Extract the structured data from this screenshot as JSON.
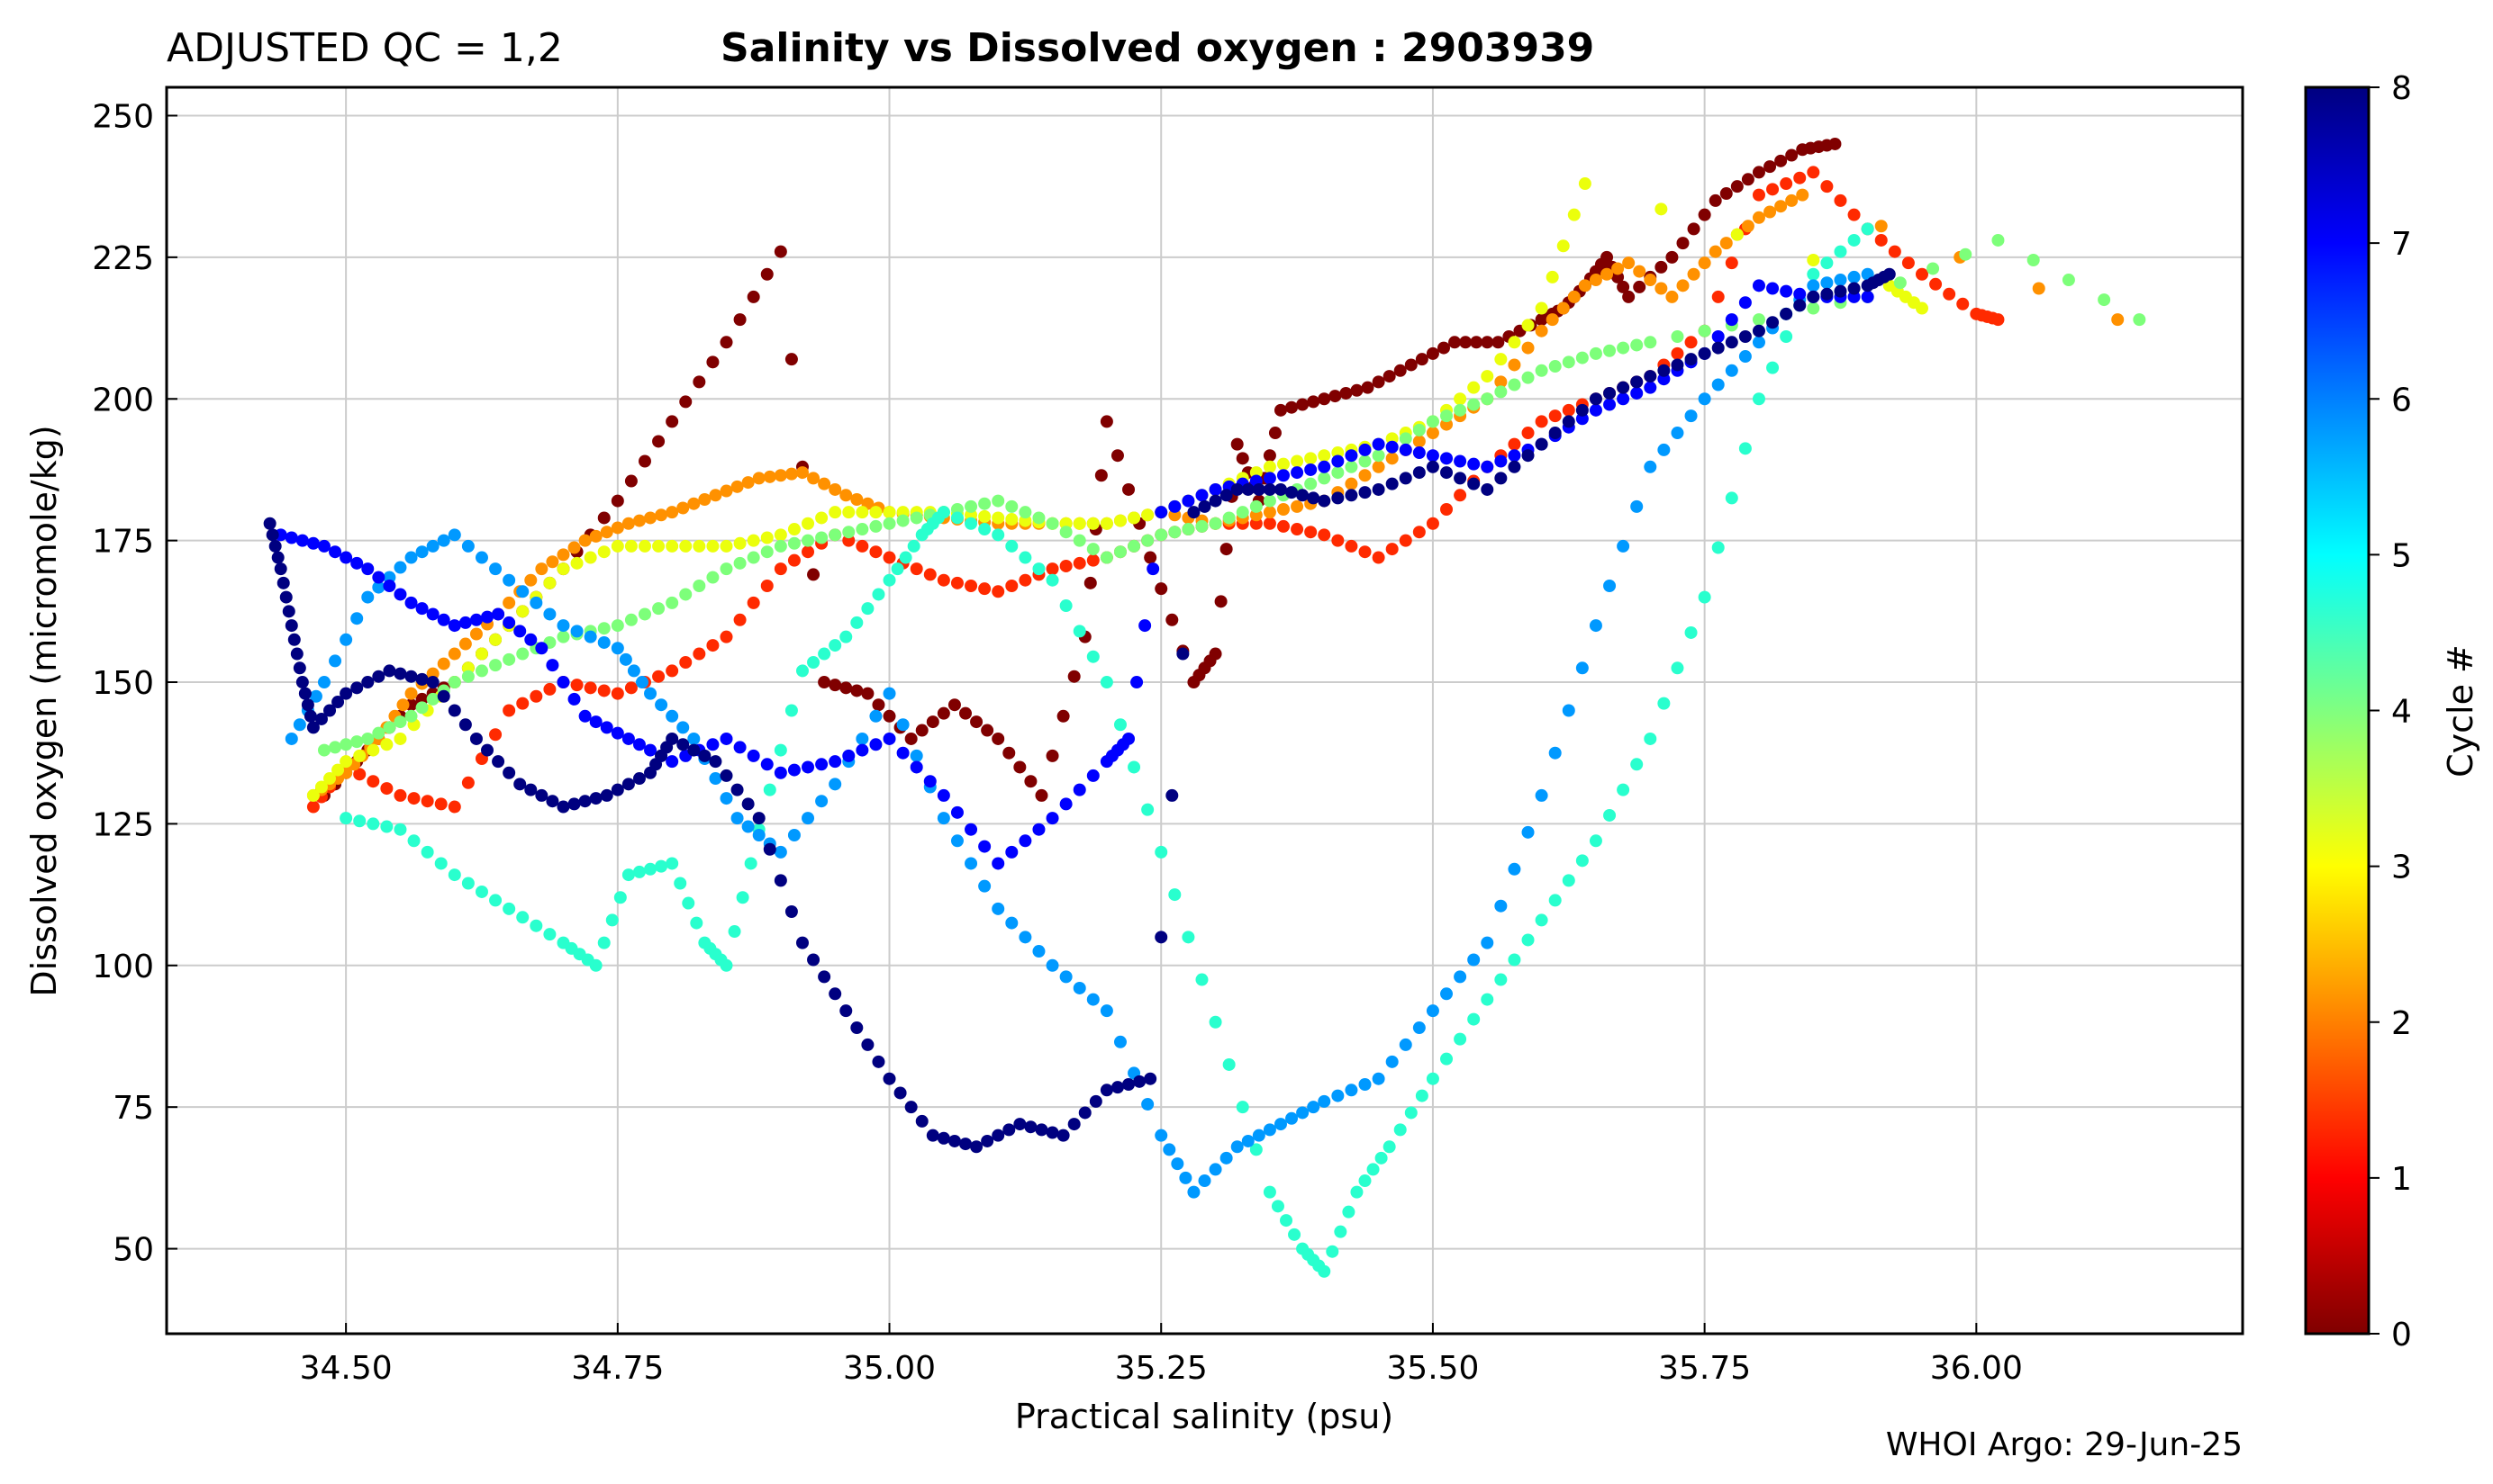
{
  "chart_data": {
    "type": "scatter",
    "title_left": "ADJUSTED QC = 1,2",
    "title": "Salinity vs Dissolved oxygen : 2903939",
    "xlabel": "Practical salinity  (psu)",
    "ylabel": "Dissolved oxygen  (micromole/kg)",
    "credit": "WHOI Argo: 29-Jun-25",
    "xlim": [
      34.335,
      36.245
    ],
    "ylim": [
      35,
      255
    ],
    "xticks": [
      34.5,
      34.75,
      35.0,
      35.25,
      35.5,
      35.75,
      36.0
    ],
    "xtick_labels": [
      "34.50",
      "34.75",
      "35.00",
      "35.25",
      "35.50",
      "35.75",
      "36.00"
    ],
    "yticks": [
      50,
      75,
      100,
      125,
      150,
      175,
      200,
      225,
      250
    ],
    "ytick_labels": [
      "50",
      "75",
      "100",
      "125",
      "150",
      "175",
      "200",
      "225",
      "250"
    ],
    "grid": true,
    "colorbar": {
      "label": "Cycle #",
      "min": 0,
      "max": 8,
      "ticks": [
        0,
        1,
        2,
        3,
        4,
        5,
        6,
        7,
        8
      ],
      "tick_labels": [
        "0",
        "1",
        "2",
        "3",
        "4",
        "5",
        "6",
        "7",
        "8"
      ],
      "colormap": "jet"
    },
    "series": [
      {
        "name": "Cycle 0",
        "cycle": 0,
        "color": "#800000",
        "x": [
          34.48,
          34.52,
          34.56,
          34.6,
          34.65,
          34.7,
          34.75,
          34.8,
          34.85,
          34.9,
          34.94,
          34.98,
          35.02,
          35.06,
          35.1,
          35.14,
          35.18,
          35.2,
          35.24,
          35.28,
          35.3,
          35.32,
          35.34,
          35.36,
          35.4,
          35.44,
          35.48,
          35.52,
          35.56,
          35.6,
          35.62,
          35.64,
          35.66,
          35.68,
          35.72,
          35.76,
          35.8,
          35.84,
          35.87
        ],
        "y": [
          130,
          138,
          146,
          150,
          160,
          170,
          182,
          196,
          210,
          226,
          150,
          148,
          140,
          146,
          140,
          130,
          158,
          196,
          172,
          150,
          155,
          192,
          182,
          198,
          200,
          202,
          206,
          210,
          210,
          214,
          216,
          220,
          225,
          218,
          225,
          235,
          240,
          244,
          245
        ]
      },
      {
        "name": "Cycle 1",
        "cycle": 1,
        "color": "#ff2a00",
        "x": [
          34.47,
          34.5,
          34.55,
          34.6,
          34.65,
          34.7,
          34.75,
          34.8,
          34.85,
          34.9,
          34.95,
          35.0,
          35.05,
          35.1,
          35.15,
          35.2,
          35.25,
          35.3,
          35.35,
          35.4,
          35.45,
          35.5,
          35.55,
          35.6,
          35.65,
          35.7,
          35.75,
          35.8,
          35.85,
          35.9,
          35.95,
          36.0,
          36.02
        ],
        "y": [
          128,
          135,
          130,
          128,
          145,
          150,
          148,
          152,
          158,
          170,
          176,
          172,
          168,
          166,
          170,
          172,
          176,
          178,
          178,
          176,
          172,
          178,
          188,
          196,
          200,
          204,
          212,
          236,
          240,
          230,
          222,
          215,
          214
        ]
      },
      {
        "name": "Cycle 2",
        "cycle": 2,
        "color": "#ff9100",
        "x": [
          34.47,
          34.5,
          34.53,
          34.56,
          34.6,
          34.64,
          34.68,
          34.72,
          34.76,
          34.8,
          34.84,
          34.88,
          34.92,
          34.96,
          35.0,
          35.05,
          35.1,
          35.15,
          35.2,
          35.25,
          35.3,
          35.35,
          35.4,
          35.45,
          35.5,
          35.55,
          35.6,
          35.64,
          35.68,
          35.72,
          35.76,
          35.8,
          35.84,
          36.13
        ],
        "y": [
          130,
          134,
          140,
          148,
          155,
          162,
          170,
          175,
          178,
          180,
          183,
          186,
          187,
          183,
          180,
          179,
          178,
          178,
          178,
          180,
          178,
          180,
          182,
          188,
          194,
          200,
          212,
          220,
          224,
          218,
          226,
          232,
          236,
          214
        ]
      },
      {
        "name": "Cycle 3",
        "cycle": 3,
        "color": "#ebff0c",
        "x": [
          34.47,
          34.5,
          34.55,
          34.6,
          34.65,
          34.7,
          34.75,
          34.8,
          34.85,
          34.9,
          34.95,
          35.0,
          35.05,
          35.1,
          35.15,
          35.2,
          35.25,
          35.3,
          35.35,
          35.4,
          35.45,
          35.5,
          35.55,
          35.6,
          35.64,
          35.92,
          35.95
        ],
        "y": [
          130,
          136,
          140,
          150,
          160,
          170,
          174,
          174,
          174,
          176,
          180,
          180,
          180,
          179,
          178,
          178,
          180,
          184,
          188,
          190,
          192,
          196,
          204,
          216,
          238,
          220,
          216
        ]
      },
      {
        "name": "Cycle 4",
        "cycle": 4,
        "color": "#7dff7a",
        "x": [
          34.48,
          34.52,
          34.56,
          34.6,
          34.65,
          34.7,
          34.75,
          34.8,
          34.85,
          34.9,
          34.95,
          35.0,
          35.05,
          35.1,
          35.15,
          35.2,
          35.25,
          35.3,
          35.35,
          35.4,
          35.45,
          35.5,
          35.55,
          35.6,
          35.65,
          35.7,
          35.8,
          35.9,
          36.02,
          36.15
        ],
        "y": [
          138,
          140,
          144,
          150,
          154,
          158,
          160,
          164,
          170,
          174,
          176,
          178,
          180,
          182,
          178,
          172,
          176,
          178,
          182,
          186,
          190,
          196,
          200,
          205,
          208,
          210,
          214,
          218,
          228,
          214
        ]
      },
      {
        "name": "Cycle 5",
        "cycle": 5,
        "color": "#29ffce",
        "x": [
          34.5,
          34.55,
          34.6,
          34.65,
          34.7,
          34.73,
          34.76,
          34.8,
          34.83,
          34.85,
          34.88,
          34.92,
          34.96,
          35.0,
          35.03,
          35.05,
          35.1,
          35.15,
          35.2,
          35.25,
          35.3,
          35.35,
          35.38,
          35.4,
          35.43,
          35.46,
          35.5,
          35.55,
          35.6,
          35.65,
          35.7,
          35.75,
          35.8,
          35.85,
          35.9
        ],
        "y": [
          126,
          124,
          116,
          110,
          104,
          100,
          116,
          118,
          104,
          100,
          124,
          152,
          158,
          168,
          176,
          180,
          176,
          168,
          150,
          120,
          90,
          60,
          50,
          46,
          60,
          68,
          80,
          94,
          108,
          122,
          140,
          165,
          200,
          222,
          230
        ]
      },
      {
        "name": "Cycle 6",
        "cycle": 6,
        "color": "#0099ff",
        "x": [
          34.45,
          34.48,
          34.52,
          34.56,
          34.6,
          34.65,
          34.7,
          34.75,
          34.78,
          34.82,
          34.86,
          34.9,
          34.95,
          35.0,
          35.05,
          35.1,
          35.15,
          35.2,
          35.25,
          35.28,
          35.32,
          35.36,
          35.4,
          35.45,
          35.5,
          35.55,
          35.6,
          35.65,
          35.7,
          35.75,
          35.8,
          35.85,
          35.9
        ],
        "y": [
          140,
          150,
          165,
          172,
          176,
          168,
          160,
          156,
          148,
          140,
          126,
          120,
          132,
          148,
          126,
          110,
          100,
          92,
          70,
          60,
          68,
          72,
          76,
          80,
          92,
          104,
          130,
          160,
          188,
          200,
          210,
          220,
          222
        ]
      },
      {
        "name": "Cycle 7",
        "cycle": 7,
        "color": "#0000ff",
        "x": [
          34.44,
          34.48,
          34.52,
          34.56,
          34.6,
          34.64,
          34.68,
          34.72,
          34.76,
          34.8,
          34.85,
          34.9,
          34.95,
          35.0,
          35.05,
          35.1,
          35.15,
          35.2,
          35.22,
          35.25,
          35.3,
          35.35,
          35.4,
          35.45,
          35.5,
          35.55,
          35.6,
          35.65,
          35.7,
          35.75,
          35.8,
          35.85,
          35.9
        ],
        "y": [
          176,
          174,
          170,
          164,
          160,
          162,
          156,
          144,
          140,
          136,
          140,
          134,
          136,
          140,
          130,
          118,
          126,
          136,
          140,
          180,
          184,
          186,
          188,
          192,
          190,
          188,
          192,
          198,
          202,
          208,
          220,
          218,
          218
        ]
      },
      {
        "name": "Cycle 8",
        "cycle": 8,
        "color": "#000080",
        "x": [
          34.43,
          34.44,
          34.45,
          34.46,
          34.47,
          34.5,
          34.54,
          34.58,
          34.62,
          34.66,
          34.7,
          34.74,
          34.78,
          34.8,
          34.84,
          34.88,
          34.92,
          34.96,
          35.0,
          35.04,
          35.08,
          35.12,
          35.16,
          35.2,
          35.24,
          35.28,
          35.32,
          35.36,
          35.4,
          35.45,
          35.5,
          35.55,
          35.6,
          35.65,
          35.7,
          35.75,
          35.8,
          35.85,
          35.9,
          35.92
        ],
        "y": [
          178,
          170,
          160,
          150,
          142,
          148,
          152,
          150,
          140,
          132,
          128,
          130,
          134,
          140,
          136,
          126,
          104,
          92,
          80,
          70,
          68,
          72,
          70,
          78,
          80,
          180,
          184,
          184,
          182,
          184,
          188,
          184,
          192,
          200,
          204,
          208,
          212,
          218,
          220,
          222
        ]
      }
    ]
  }
}
